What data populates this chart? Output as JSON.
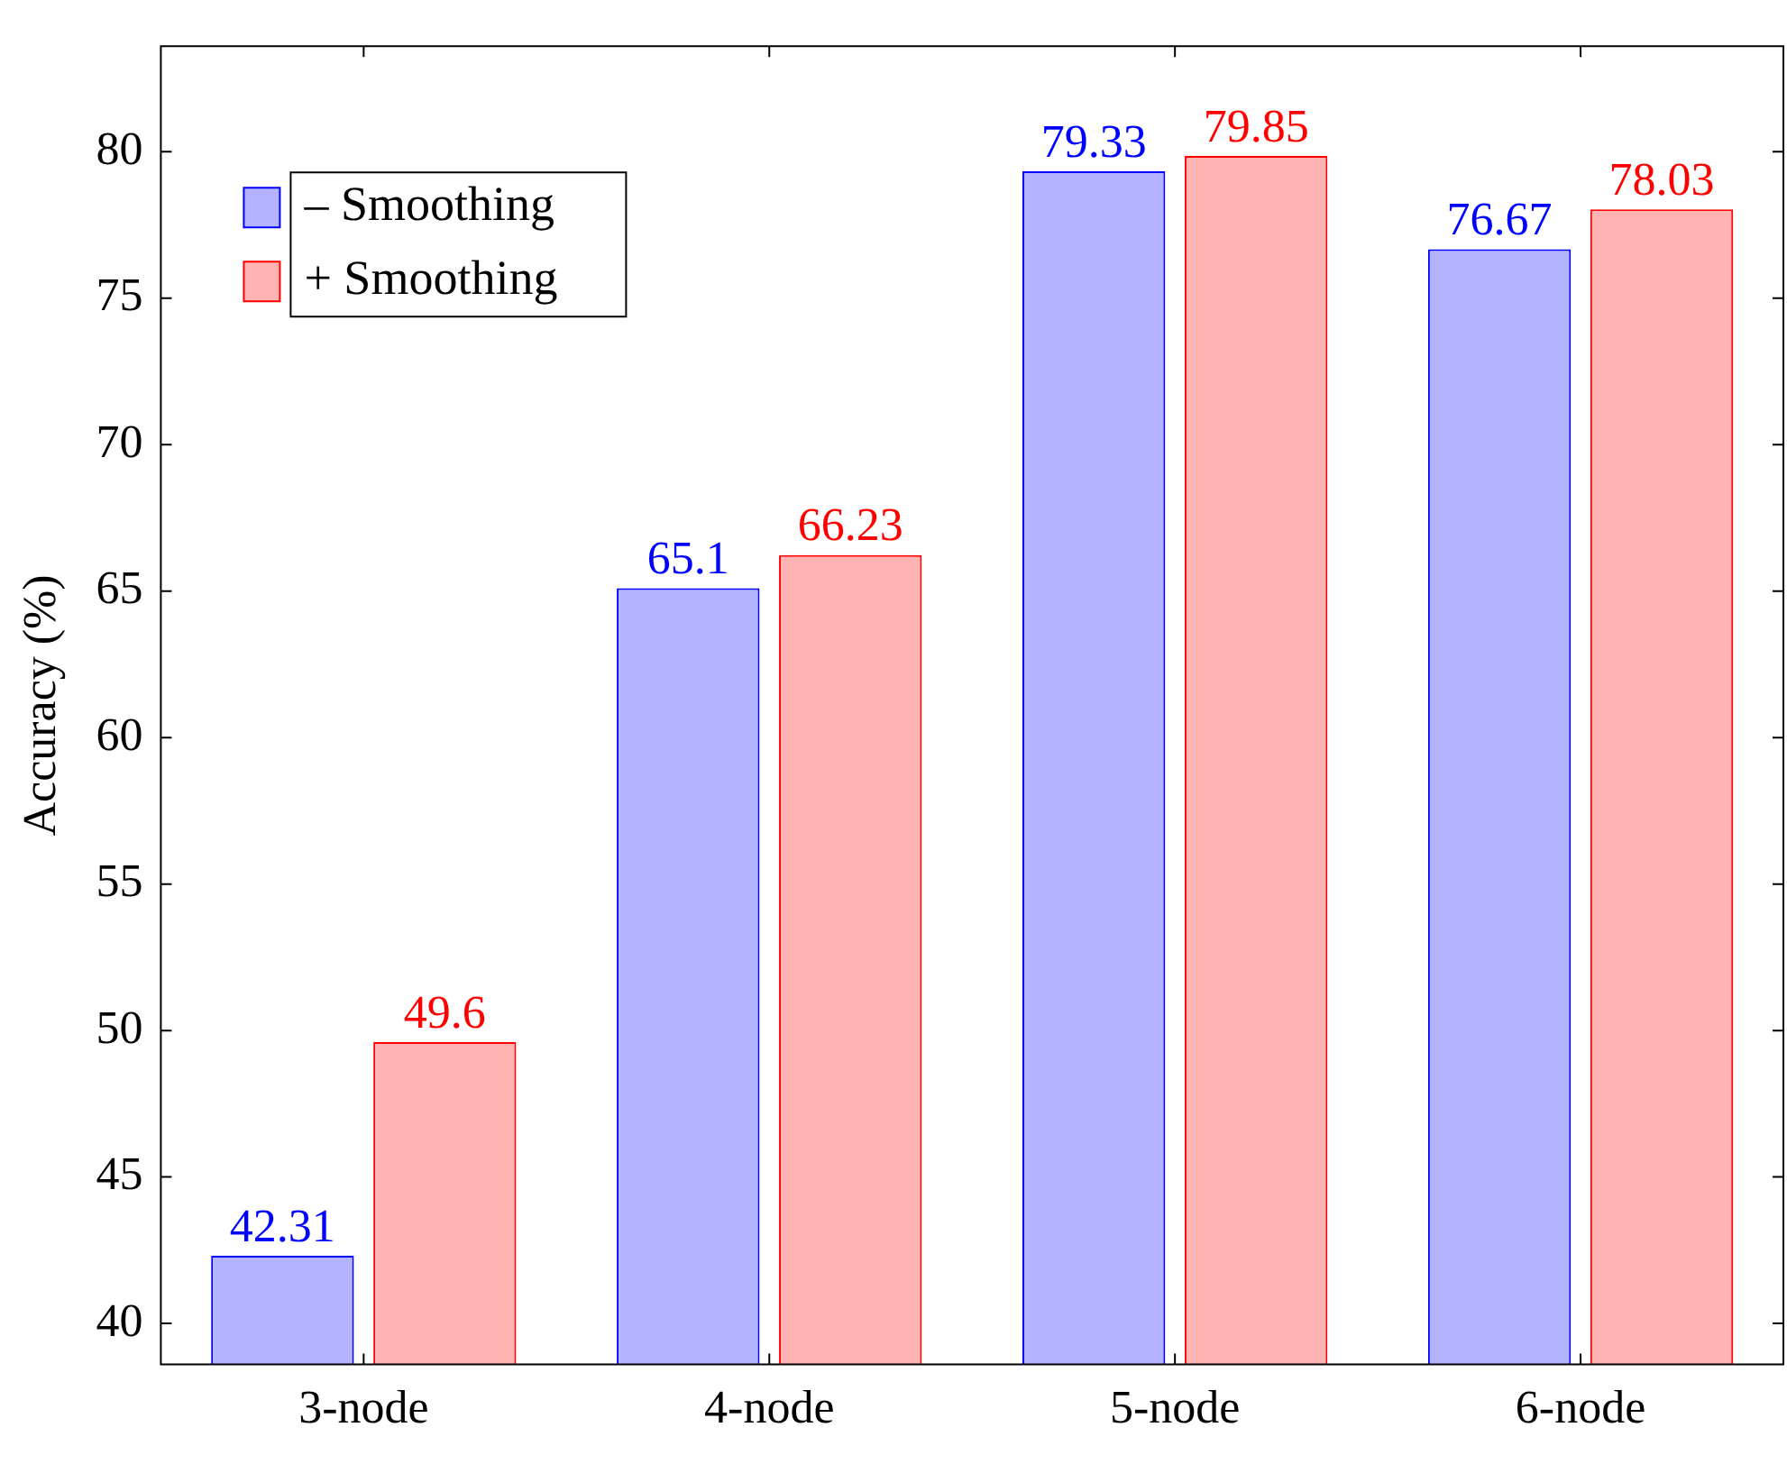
{
  "chart_data": {
    "type": "bar",
    "ylabel": "Accuracy (%)",
    "categories": [
      "3-node",
      "4-node",
      "5-node",
      "6-node"
    ],
    "series": [
      {
        "name": "– Smoothing",
        "color": "#b3b3ff",
        "values": [
          42.31,
          65.1,
          79.33,
          76.67
        ]
      },
      {
        "name": "+ Smoothing",
        "color": "#ffb3b3",
        "values": [
          49.6,
          66.23,
          79.85,
          78.03
        ]
      }
    ],
    "ylim": [
      38.6,
      83.6
    ],
    "yticks": [
      40,
      45,
      50,
      55,
      60,
      65,
      70,
      75,
      80
    ],
    "data_labels": true,
    "legend": "top left",
    "grid": false
  }
}
